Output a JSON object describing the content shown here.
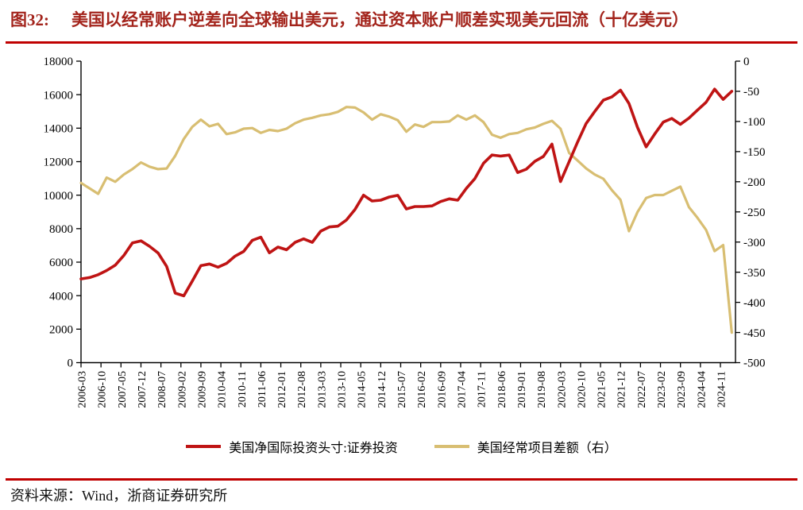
{
  "title": {
    "tag": "图32:",
    "text": "美国以经常账户逆差向全球输出美元，通过资本账户顺差实现美元回流（十亿美元）"
  },
  "footer": {
    "source": "资料来源：Wind，浙商证券研究所"
  },
  "colors": {
    "accent_red_rule": "#c00000",
    "title_red": "#a3241c",
    "series_red": "#bf1414",
    "series_tan": "#d8be72",
    "axis_black": "#000000"
  },
  "legend": [
    {
      "label": "美国净国际投资头寸:证券投资"
    },
    {
      "label": "美国经常项目差额（右）"
    }
  ],
  "chart_data": {
    "type": "line",
    "title": "美国以经常账户逆差向全球输出美元，通过资本账户顺差实现美元回流（十亿美元）",
    "grid": false,
    "legend_position": "bottom",
    "x_tick_labels": [
      "2006-03",
      "2006-10",
      "2007-05",
      "2007-12",
      "2008-07",
      "2009-02",
      "2009-09",
      "2010-04",
      "2010-11",
      "2011-06",
      "2012-01",
      "2012-08",
      "2013-03",
      "2013-10",
      "2014-05",
      "2014-12",
      "2015-07",
      "2016-02",
      "2016-09",
      "2017-04",
      "2017-11",
      "2018-06",
      "2019-01",
      "2019-08",
      "2020-03",
      "2020-10",
      "2021-05",
      "2021-12",
      "2022-07",
      "2023-02",
      "2023-09",
      "2024-04",
      "2024-11"
    ],
    "left_axis": {
      "min": 0,
      "max": 18000,
      "step": 2000,
      "tick_labels": [
        "0",
        "2000",
        "4000",
        "6000",
        "8000",
        "10000",
        "12000",
        "14000",
        "16000",
        "18000"
      ]
    },
    "right_axis": {
      "min": -500,
      "max": 0,
      "step": 50,
      "tick_labels": [
        "0",
        "-50",
        "-100",
        "-150",
        "-200",
        "-250",
        "-300",
        "-350",
        "-400",
        "-450",
        "-500"
      ]
    },
    "x": [
      "2006-03",
      "2006-06",
      "2006-09",
      "2006-12",
      "2007-03",
      "2007-06",
      "2007-09",
      "2007-12",
      "2008-03",
      "2008-06",
      "2008-09",
      "2008-12",
      "2009-03",
      "2009-06",
      "2009-09",
      "2009-12",
      "2010-03",
      "2010-06",
      "2010-09",
      "2010-12",
      "2011-03",
      "2011-06",
      "2011-09",
      "2011-12",
      "2012-03",
      "2012-06",
      "2012-09",
      "2012-12",
      "2013-03",
      "2013-06",
      "2013-09",
      "2013-12",
      "2014-03",
      "2014-06",
      "2014-09",
      "2014-12",
      "2015-03",
      "2015-06",
      "2015-09",
      "2015-12",
      "2016-03",
      "2016-06",
      "2016-09",
      "2016-12",
      "2017-03",
      "2017-06",
      "2017-09",
      "2017-12",
      "2018-03",
      "2018-06",
      "2018-09",
      "2018-12",
      "2019-03",
      "2019-06",
      "2019-09",
      "2019-12",
      "2020-03",
      "2020-06",
      "2020-09",
      "2020-12",
      "2021-03",
      "2021-06",
      "2021-09",
      "2021-12",
      "2022-03",
      "2022-06",
      "2022-09",
      "2022-12",
      "2023-03",
      "2023-06",
      "2023-09",
      "2023-12",
      "2024-03",
      "2024-06",
      "2024-09",
      "2024-12",
      "2025-03"
    ],
    "series": [
      {
        "name": "美国净国际投资头寸:证券投资",
        "axis": "left",
        "color": "#bf1414",
        "values": [
          5000,
          5080,
          5250,
          5500,
          5820,
          6400,
          7150,
          7270,
          6950,
          6550,
          5750,
          4150,
          3990,
          4870,
          5790,
          5890,
          5700,
          5930,
          6360,
          6640,
          7300,
          7490,
          6560,
          6900,
          6740,
          7180,
          7390,
          7180,
          7850,
          8100,
          8150,
          8520,
          9150,
          10000,
          9650,
          9700,
          9890,
          9990,
          9180,
          9320,
          9320,
          9360,
          9620,
          9780,
          9700,
          10400,
          10990,
          11900,
          12400,
          12330,
          12400,
          11350,
          11550,
          12020,
          12310,
          13050,
          10810,
          11990,
          13180,
          14280,
          15000,
          15670,
          15870,
          16270,
          15470,
          14040,
          12880,
          13650,
          14360,
          14580,
          14230,
          14600,
          15080,
          15550,
          16330,
          15720,
          16200
        ]
      },
      {
        "name": "美国经常项目差额（右）",
        "axis": "right",
        "color": "#d8be72",
        "values": [
          -202,
          -211,
          -220,
          -193,
          -200,
          -188,
          -179,
          -168,
          -175,
          -179,
          -178,
          -157,
          -129,
          -109,
          -97,
          -108,
          -104,
          -121,
          -118,
          -112,
          -111,
          -119,
          -114,
          -116,
          -112,
          -103,
          -97,
          -94,
          -90,
          -88,
          -84,
          -76,
          -77,
          -85,
          -97,
          -88,
          -92,
          -98,
          -117,
          -105,
          -109,
          -101,
          -101,
          -100,
          -90,
          -97,
          -90,
          -101,
          -122,
          -127,
          -121,
          -119,
          -113,
          -110,
          -104,
          -99,
          -112,
          -152,
          -165,
          -178,
          -188,
          -195,
          -214,
          -230,
          -282,
          -250,
          -227,
          -222,
          -222,
          -215,
          -208,
          -242,
          -260,
          -280,
          -315,
          -305,
          -450
        ]
      }
    ]
  }
}
